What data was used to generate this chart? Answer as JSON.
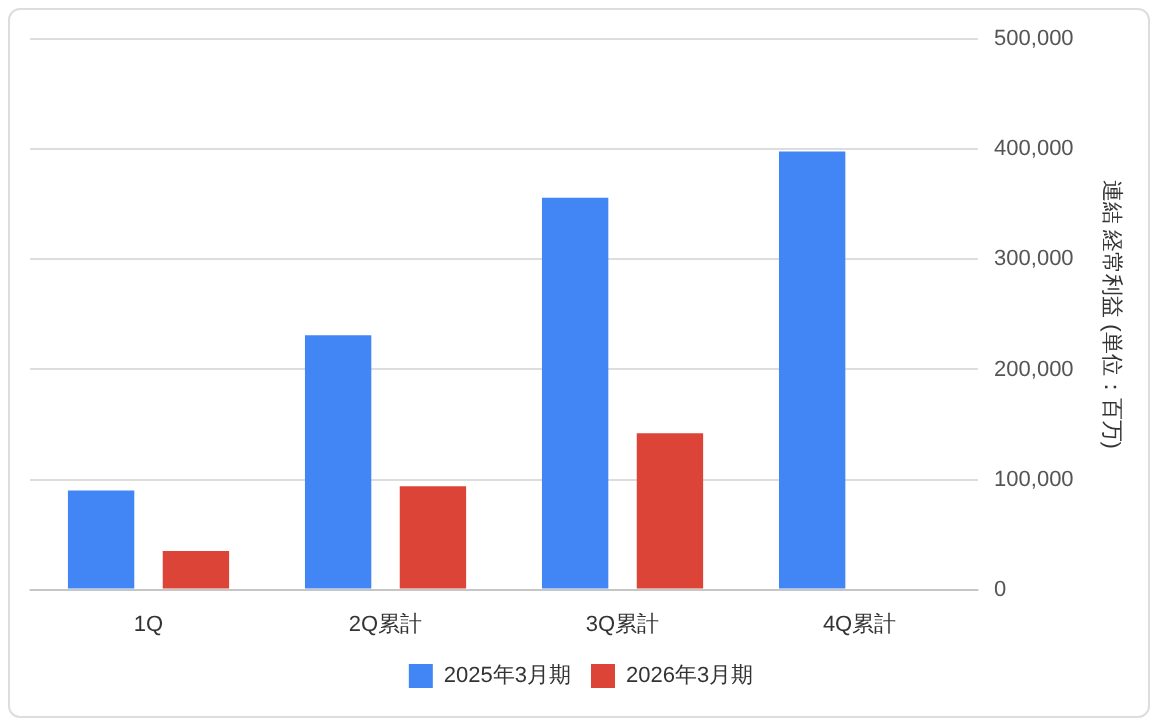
{
  "chart_data": {
    "type": "bar",
    "ylabel": "連結 経常利益 (単位：百万)",
    "categories": [
      "1Q",
      "2Q累計",
      "3Q累計",
      "4Q累計"
    ],
    "series": [
      {
        "name": "2025年3月期",
        "color": "#4285f4",
        "values": [
          90000,
          231000,
          356000,
          398000
        ]
      },
      {
        "name": "2026年3月期",
        "color": "#db4437",
        "values": [
          35000,
          94000,
          142000,
          null
        ]
      }
    ],
    "ylim": [
      0,
      500000
    ],
    "yticks": [
      {
        "value": 0,
        "label": "0"
      },
      {
        "value": 100000,
        "label": "100,000"
      },
      {
        "value": 200000,
        "label": "200,000"
      },
      {
        "value": 300000,
        "label": "300,000"
      },
      {
        "value": 400000,
        "label": "400,000"
      },
      {
        "value": 500000,
        "label": "500,000"
      }
    ],
    "grid": "y",
    "legend": "bottom"
  }
}
